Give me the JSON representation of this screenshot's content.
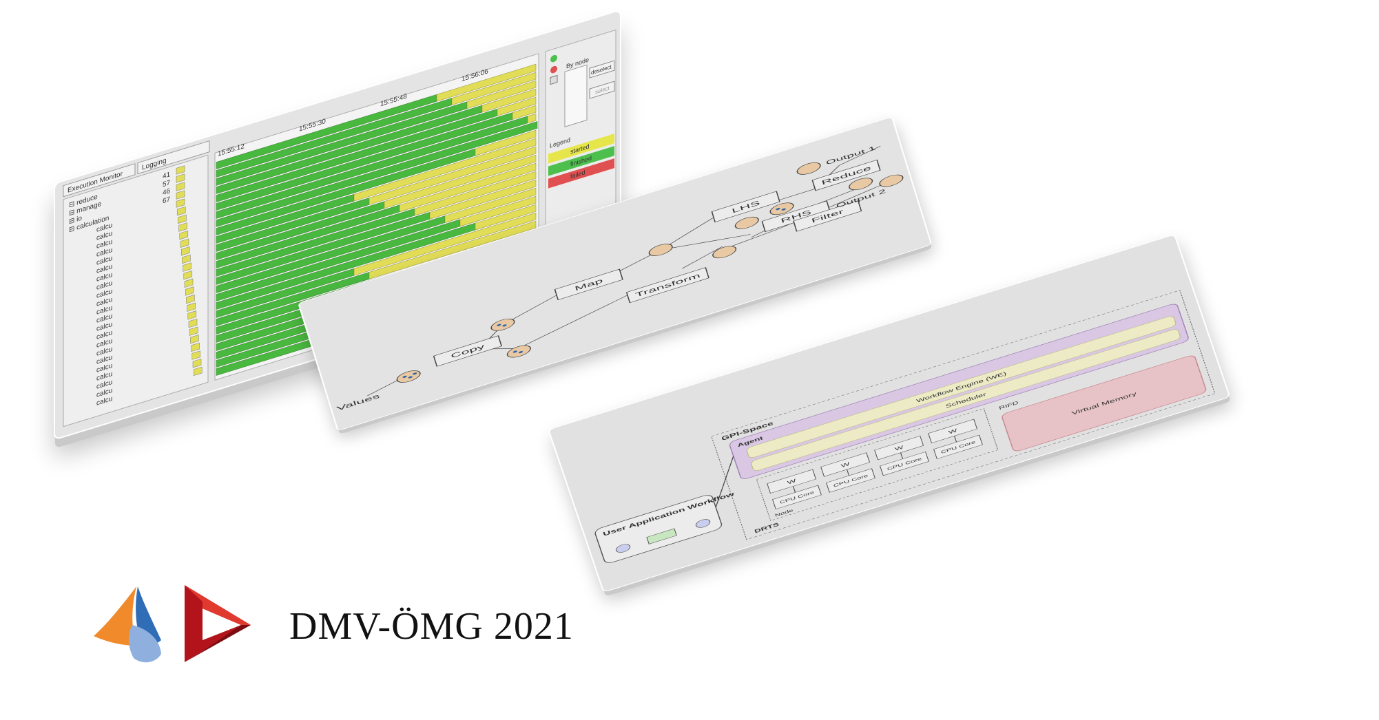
{
  "monitor": {
    "tabs": [
      "Execution Monitor",
      "Logging"
    ],
    "times": [
      "15:55:12",
      "15:55:30",
      "15:55:48",
      "15:56:06"
    ],
    "categories": [
      {
        "label": "reduce",
        "count": "41"
      },
      {
        "label": "manage",
        "count": "57"
      },
      {
        "label": "io",
        "count": "46"
      },
      {
        "label": "calculation",
        "count": "67"
      }
    ],
    "sub_label": "calcu",
    "sub_rows": 22,
    "by_node": "By node",
    "deselect": "deselect",
    "select": "select",
    "legend_label": "Legend",
    "legend": [
      {
        "label": "started",
        "color": "#e6e64a"
      },
      {
        "label": "finished",
        "color": "#4cbf4c"
      },
      {
        "label": "failed",
        "color": "#e05050"
      }
    ],
    "green": "#49b83f",
    "yellow": "#e2dd57"
  },
  "workflow": {
    "values": "Values",
    "copy": "Copy",
    "map": "Map",
    "transform": "Transform",
    "lhs": "LHS",
    "rhs": "RHS",
    "reduce": "Reduce",
    "filter": "Filter",
    "output1": "Output 1",
    "output2": "Output 2",
    "node_fill": "#e8c9a4"
  },
  "architecture": {
    "user_workflow": "User Application Workflow",
    "gpi_space": "GPI-Space",
    "agent": "Agent",
    "workflow_engine": "Workflow Engine (WE)",
    "scheduler": "Scheduler",
    "rifd": "RIFD",
    "worker": "W",
    "cpu_core": "CPU Core",
    "node": "Node",
    "virtual_memory": "Virtual Memory",
    "drts": "DRTS"
  },
  "brand": {
    "title": "DMV-ÖMG 2021"
  }
}
